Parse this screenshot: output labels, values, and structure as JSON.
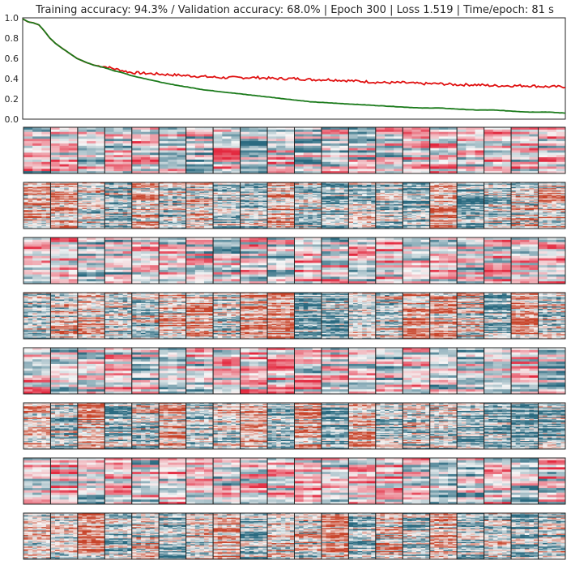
{
  "chart_data": [
    {
      "type": "line",
      "title": "Training accuracy: 94.3% / Validation accuracy: 68.0% | Epoch 300 | Loss 1.519 | Time/epoch: 81 s",
      "xlabel": "",
      "ylabel": "",
      "xlim": [
        0,
        300
      ],
      "ylim": [
        0.0,
        1.0
      ],
      "yticks": [
        "0.0",
        "0.2",
        "0.4",
        "0.6",
        "0.8",
        "1.0"
      ],
      "grid": false,
      "series": [
        {
          "color": "#e01010",
          "x": [
            0,
            3,
            6,
            9,
            12,
            15,
            18,
            21,
            25,
            30,
            35,
            40,
            45,
            50,
            55,
            60,
            70,
            80,
            90,
            100,
            110,
            120,
            130,
            140,
            150,
            160,
            170,
            180,
            190,
            200,
            210,
            220,
            230,
            240,
            250,
            260,
            270,
            280,
            290,
            300
          ],
          "y": [
            0.99,
            0.96,
            0.95,
            0.93,
            0.87,
            0.8,
            0.75,
            0.71,
            0.66,
            0.6,
            0.56,
            0.53,
            0.52,
            0.5,
            0.48,
            0.46,
            0.45,
            0.44,
            0.43,
            0.42,
            0.41,
            0.41,
            0.41,
            0.4,
            0.4,
            0.39,
            0.39,
            0.38,
            0.37,
            0.36,
            0.36,
            0.35,
            0.35,
            0.34,
            0.34,
            0.33,
            0.33,
            0.33,
            0.32,
            0.32
          ]
        },
        {
          "color": "#1a7a1a",
          "x": [
            0,
            3,
            6,
            9,
            12,
            15,
            18,
            21,
            25,
            30,
            35,
            40,
            45,
            50,
            55,
            60,
            70,
            80,
            90,
            100,
            110,
            120,
            130,
            140,
            150,
            160,
            170,
            180,
            190,
            200,
            210,
            220,
            230,
            240,
            250,
            260,
            270,
            280,
            290,
            300
          ],
          "y": [
            0.99,
            0.96,
            0.95,
            0.93,
            0.87,
            0.8,
            0.75,
            0.71,
            0.66,
            0.6,
            0.56,
            0.53,
            0.51,
            0.48,
            0.46,
            0.43,
            0.39,
            0.35,
            0.32,
            0.29,
            0.27,
            0.25,
            0.23,
            0.21,
            0.19,
            0.17,
            0.16,
            0.15,
            0.14,
            0.13,
            0.12,
            0.11,
            0.11,
            0.1,
            0.09,
            0.09,
            0.08,
            0.07,
            0.07,
            0.06
          ]
        }
      ]
    },
    {
      "type": "heatmap",
      "title": "",
      "rows": 8,
      "columns": 20,
      "colormap": [
        "#2a6a80",
        "#f7f7f7",
        "#e3293f"
      ],
      "alt_colormap": [
        "#2a6a80",
        "#f7f7f7",
        "#c8442a"
      ]
    }
  ]
}
